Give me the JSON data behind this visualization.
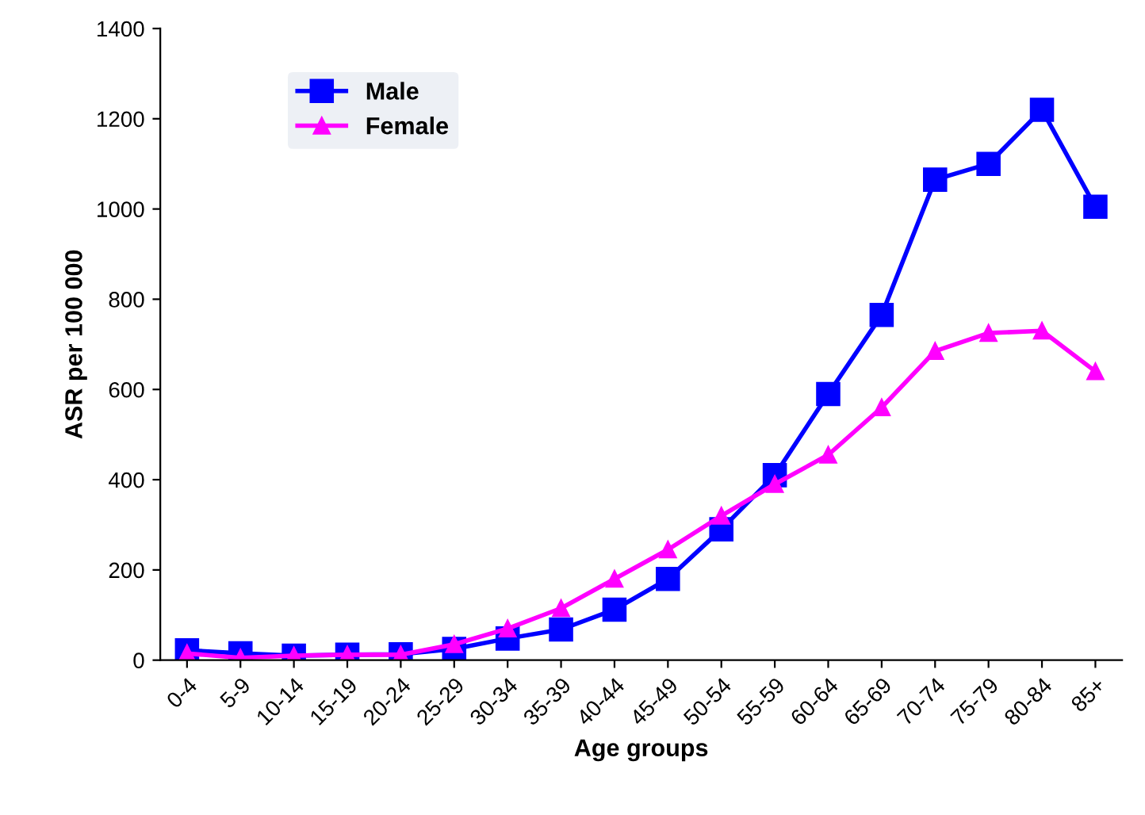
{
  "chart_data": {
    "type": "line",
    "xlabel": "Age groups",
    "ylabel": "ASR per 100 000",
    "categories": [
      "0-4",
      "5-9",
      "10-14",
      "15-19",
      "20-24",
      "25-29",
      "30-34",
      "35-39",
      "40-44",
      "45-49",
      "50-54",
      "55-59",
      "60-64",
      "65-69",
      "70-74",
      "75-79",
      "80-84",
      "85+"
    ],
    "series": [
      {
        "name": "Male",
        "color": "#0000ff",
        "marker": "square",
        "values": [
          22,
          15,
          10,
          12,
          13,
          25,
          48,
          68,
          112,
          180,
          290,
          410,
          590,
          765,
          1065,
          1100,
          1220,
          1005
        ]
      },
      {
        "name": "Female",
        "color": "#ff00ff",
        "marker": "triangle",
        "values": [
          15,
          5,
          10,
          12,
          12,
          35,
          70,
          115,
          180,
          245,
          320,
          390,
          455,
          560,
          685,
          725,
          730,
          640
        ]
      }
    ],
    "ylim": [
      0,
      1400
    ],
    "yticks": [
      0,
      200,
      400,
      600,
      800,
      1000,
      1200,
      1400
    ],
    "grid": false,
    "legend": "top left"
  }
}
